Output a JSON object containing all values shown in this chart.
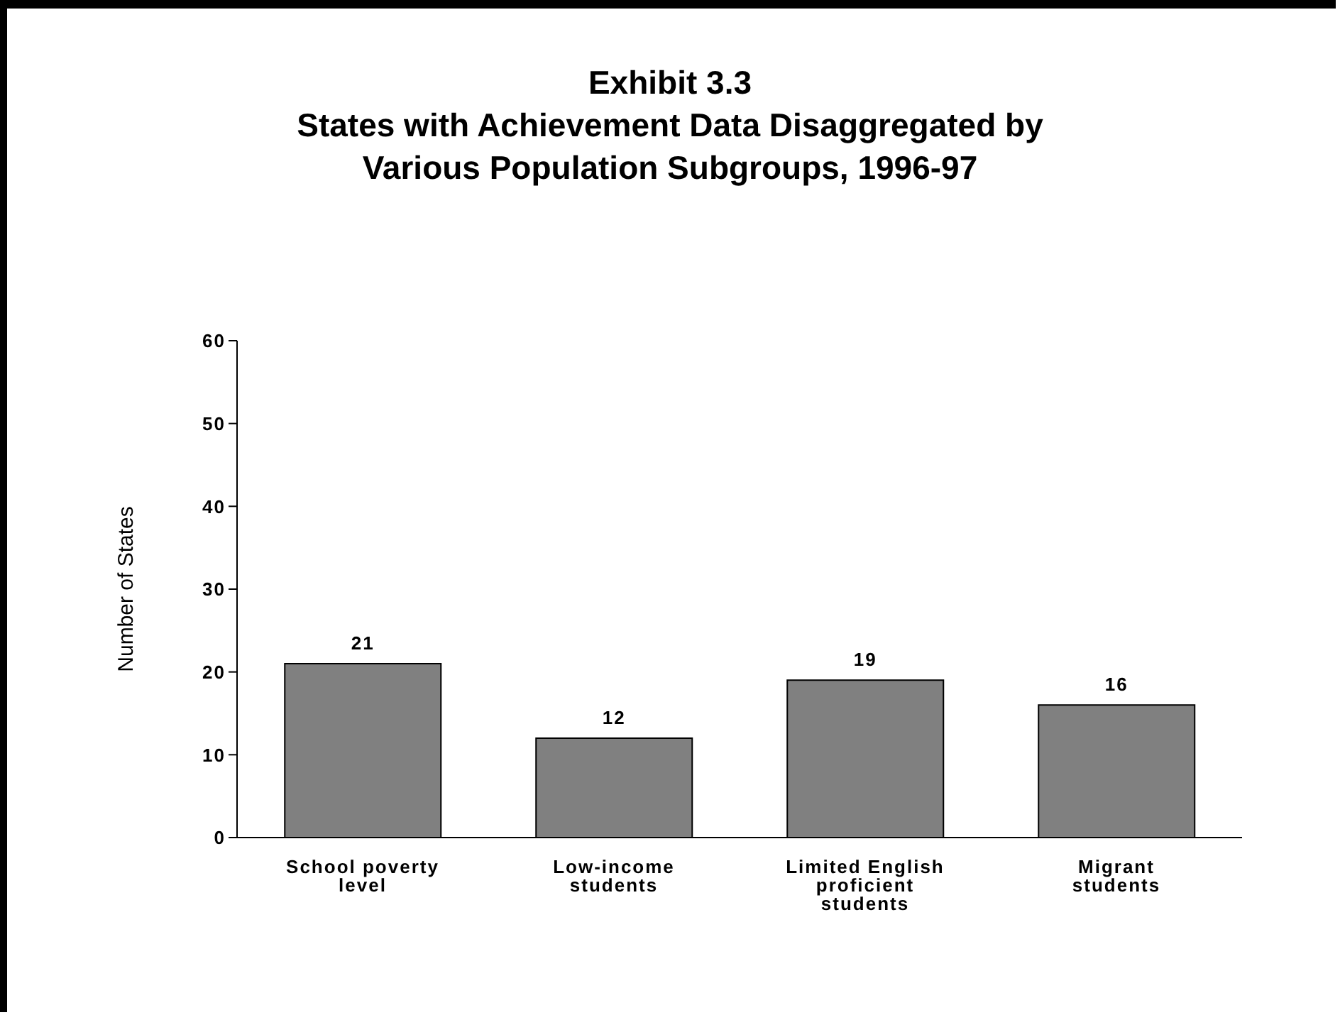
{
  "chart_data": {
    "type": "bar",
    "title": "Exhibit 3.3\nStates with Achievement Data Disaggregated by\nVarious Population Subgroups, 1996-97",
    "ylabel": "Number of States",
    "categories": [
      "School poverty level",
      "Low-income students",
      "Limited English proficient students",
      "Migrant students"
    ],
    "values": [
      21,
      12,
      19,
      16
    ],
    "color": "#808080",
    "ylim": [
      0,
      60
    ],
    "yticks": [
      0,
      10,
      20,
      30,
      40,
      50,
      60
    ],
    "grid": false,
    "legend": false,
    "data_labels": true
  }
}
